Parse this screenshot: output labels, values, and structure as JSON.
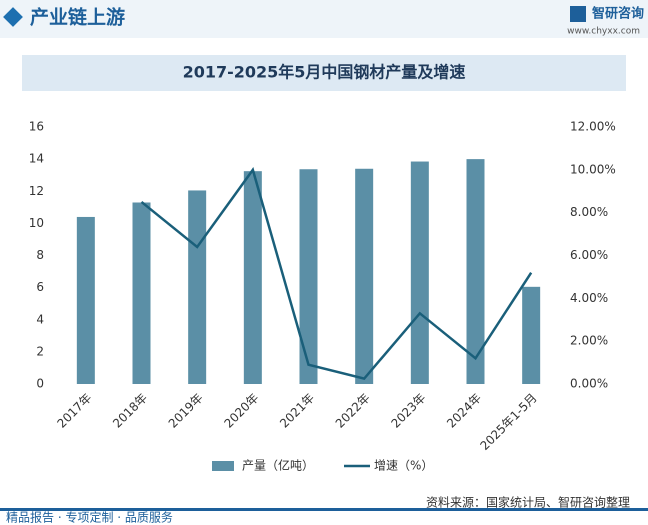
{
  "header": {
    "title": "产业链上游",
    "brand": "智研咨询",
    "url": "www.chyxx.com"
  },
  "chart_data": {
    "type": "bar-line",
    "title": "2017-2025年5月中国钢材产量及增速",
    "categories": [
      "2017年",
      "2018年",
      "2019年",
      "2020年",
      "2021年",
      "2022年",
      "2023年",
      "2024年",
      "2025年1-5月"
    ],
    "series": [
      {
        "name": "产量（亿吨）",
        "type": "bar",
        "color": "#5b8fa6",
        "values": [
          10.4,
          11.3,
          12.05,
          13.25,
          13.37,
          13.4,
          13.85,
          14.0,
          6.05
        ]
      },
      {
        "name": "增速（%）",
        "type": "line",
        "axis": "y2",
        "color": "#1a5f7a",
        "values": [
          null,
          8.5,
          6.4,
          10.0,
          0.9,
          0.25,
          3.3,
          1.2,
          5.2
        ]
      }
    ],
    "ylim": [
      0,
      16
    ],
    "yticks": [
      0,
      2,
      4,
      6,
      8,
      10,
      12,
      14,
      16
    ],
    "y2lim": [
      0,
      12
    ],
    "y2ticks": [
      {
        "value": 0,
        "label": "0.00%"
      },
      {
        "value": 2,
        "label": "2.00%"
      },
      {
        "value": 4,
        "label": "4.00%"
      },
      {
        "value": 6,
        "label": "6.00%"
      },
      {
        "value": 8,
        "label": "8.00%"
      },
      {
        "value": 10,
        "label": "10.00%"
      },
      {
        "value": 12,
        "label": "12.00%"
      }
    ],
    "grid": false
  },
  "footer": {
    "source": "资料来源：国家统计局、智研咨询整理",
    "slogan": "精品报告 · 专项定制 · 品质服务"
  }
}
